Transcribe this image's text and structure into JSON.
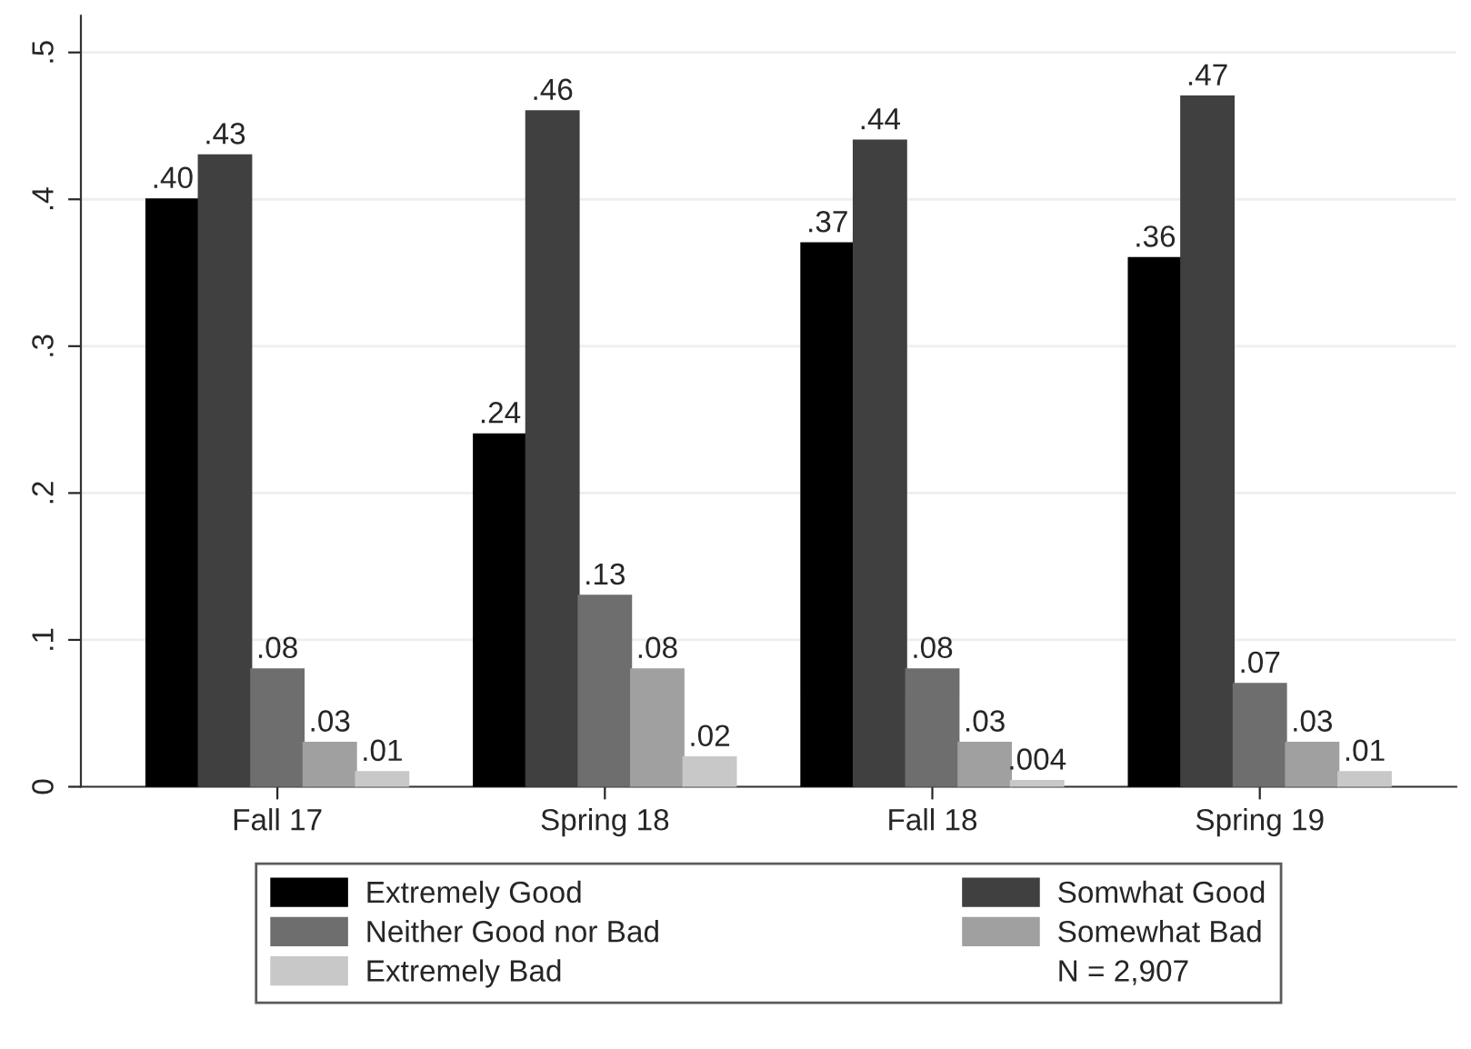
{
  "chart_data": {
    "type": "bar",
    "categories": [
      "Fall 17",
      "Spring 18",
      "Fall 18",
      "Spring 19"
    ],
    "series": [
      {
        "name": "Extremely Good",
        "color": "#000000",
        "values": [
          0.4,
          0.24,
          0.37,
          0.36
        ],
        "value_labels": [
          ".40",
          ".24",
          ".37",
          ".36"
        ]
      },
      {
        "name": "Somwhat Good",
        "color": "#404040",
        "values": [
          0.43,
          0.46,
          0.44,
          0.47
        ],
        "value_labels": [
          ".43",
          ".46",
          ".44",
          ".47"
        ]
      },
      {
        "name": "Neither Good nor Bad",
        "color": "#6e6e6e",
        "values": [
          0.08,
          0.13,
          0.08,
          0.07
        ],
        "value_labels": [
          ".08",
          ".13",
          ".08",
          ".07"
        ]
      },
      {
        "name": "Somewhat Bad",
        "color": "#a0a0a0",
        "values": [
          0.03,
          0.08,
          0.03,
          0.03
        ],
        "value_labels": [
          ".03",
          ".08",
          ".03",
          ".03"
        ]
      },
      {
        "name": "Extremely Bad",
        "color": "#c8c8c8",
        "values": [
          0.01,
          0.02,
          0.004,
          0.01
        ],
        "value_labels": [
          ".01",
          ".02",
          ".004",
          ".01"
        ]
      }
    ],
    "ylim": [
      0,
      0.525
    ],
    "yticks": [
      0,
      {
        "value": 0.1,
        "label": ".1"
      },
      {
        "value": 0.2,
        "label": ".2"
      },
      {
        "value": 0.3,
        "label": ".3"
      },
      {
        "value": 0.4,
        "label": ".4"
      },
      {
        "value": 0.5,
        "label": ".5"
      }
    ],
    "grid": "y",
    "legend": "bottom",
    "annotations": [
      "N = 2,907"
    ]
  }
}
